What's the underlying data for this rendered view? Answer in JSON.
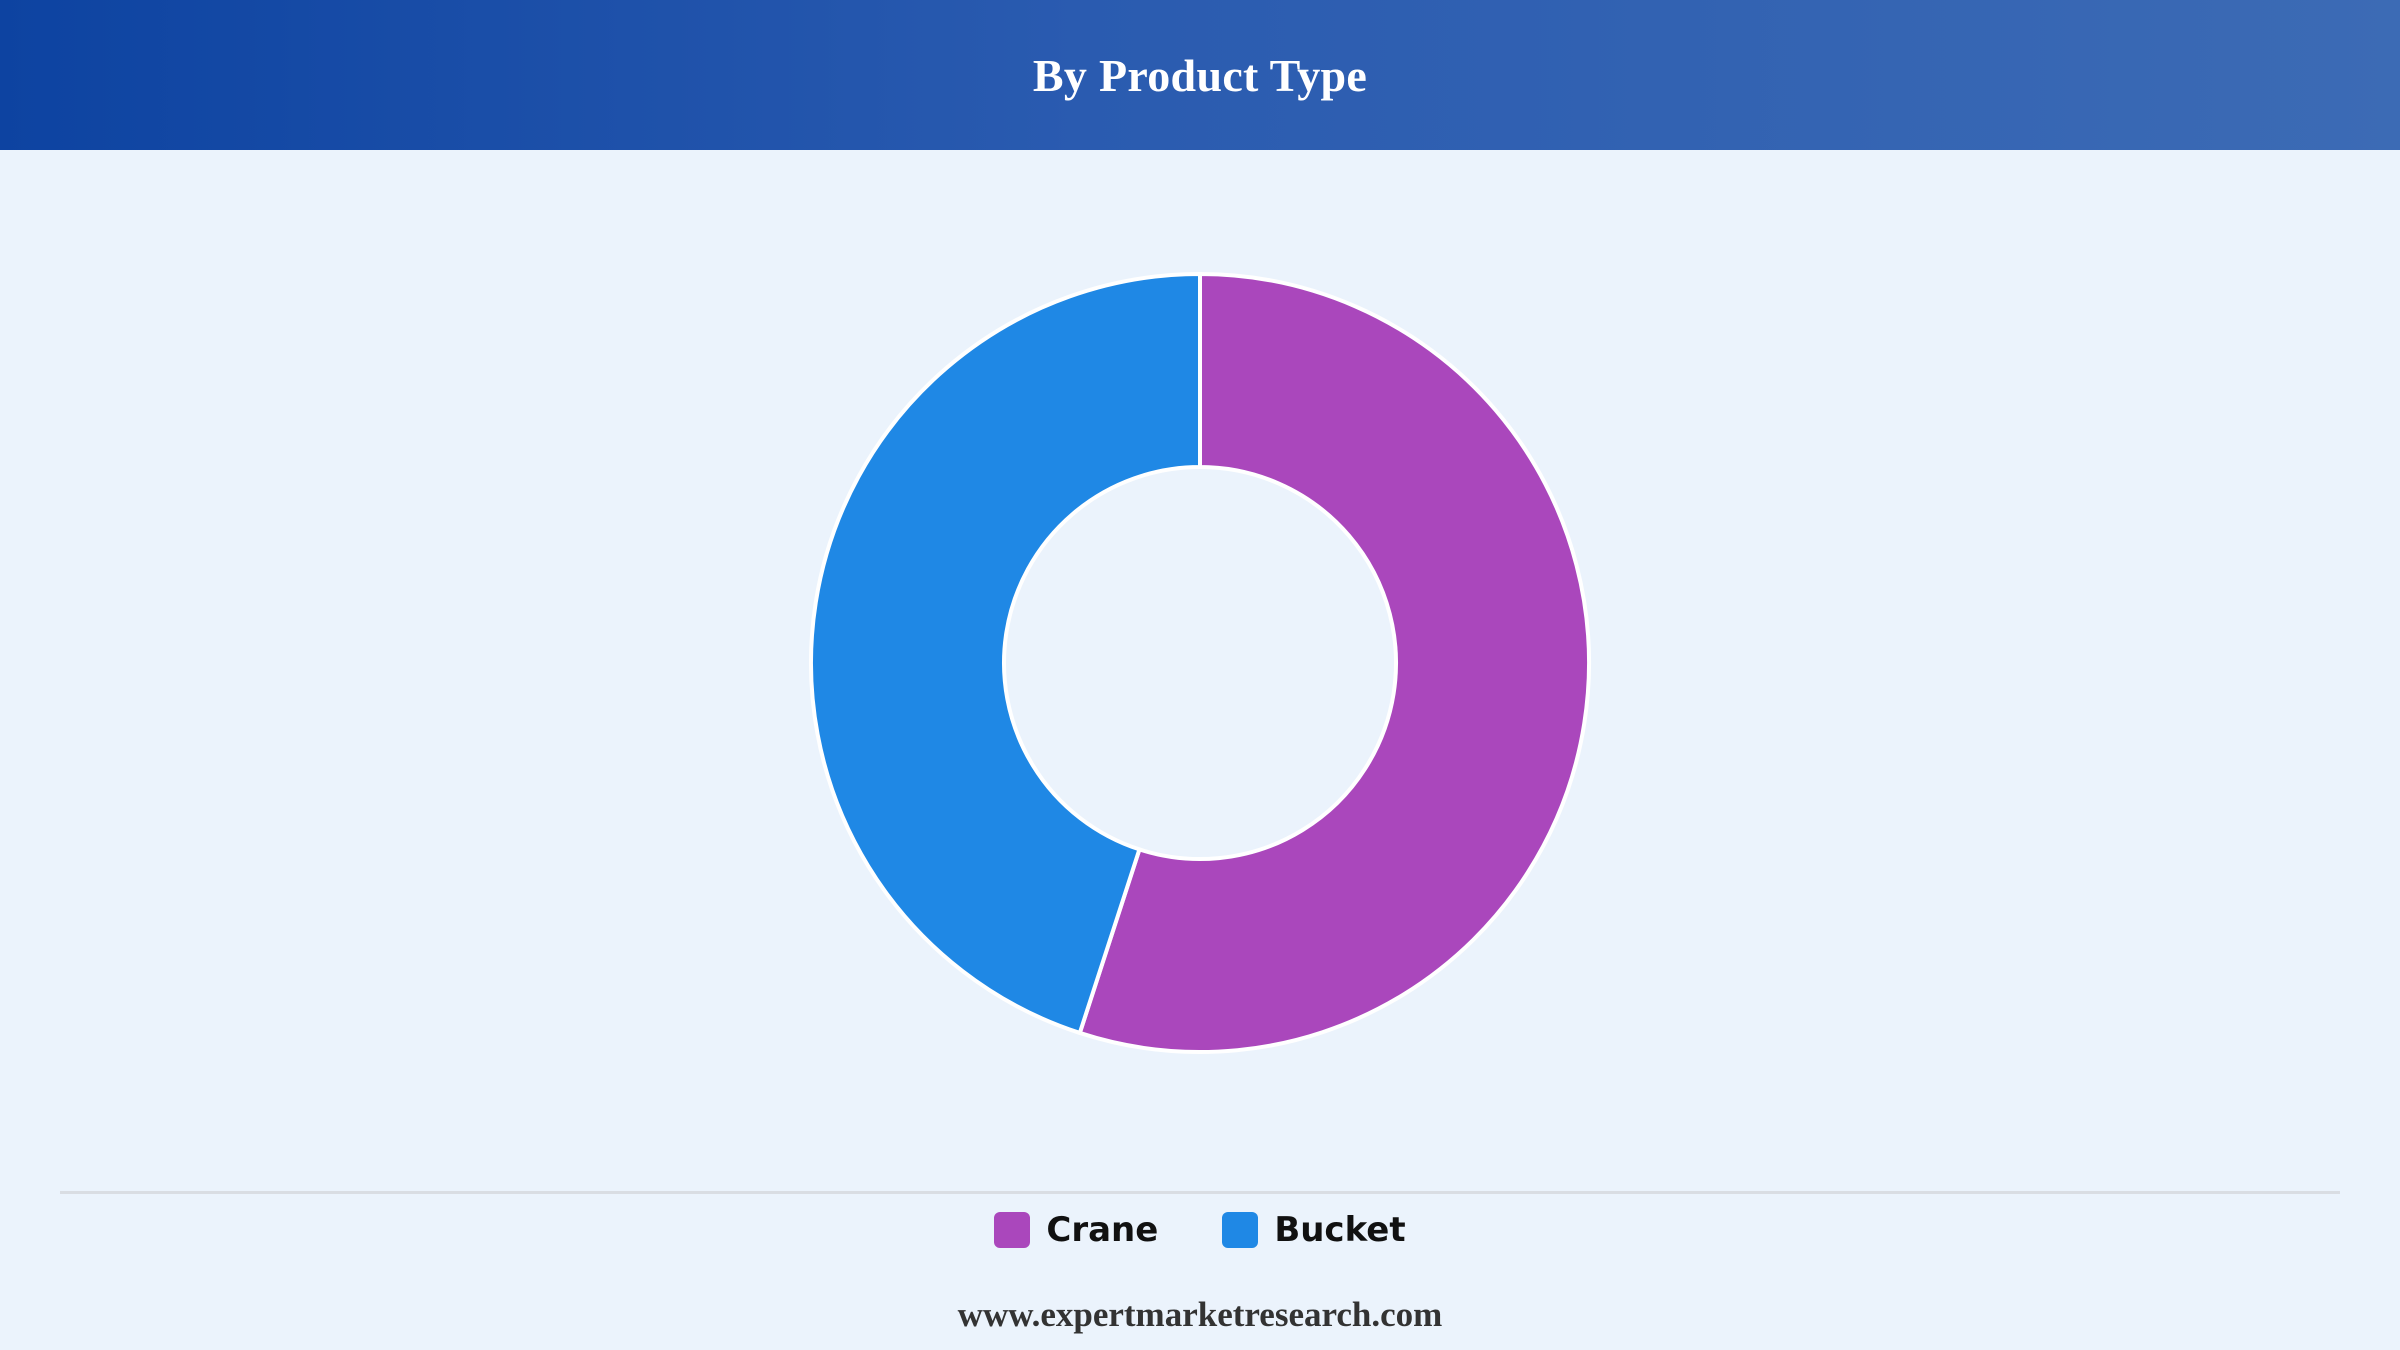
{
  "header": {
    "title": "By Product Type"
  },
  "chart_data": {
    "type": "pie",
    "donut": true,
    "categories": [
      "Crane",
      "Bucket"
    ],
    "values": [
      55,
      45
    ],
    "colors": [
      "#aa47bc",
      "#1f88e5"
    ],
    "legend_position": "bottom",
    "title": "By Product Type"
  },
  "legend": {
    "items": [
      {
        "label": "Crane",
        "color": "#aa47bc"
      },
      {
        "label": "Bucket",
        "color": "#1f88e5"
      }
    ]
  },
  "footer": {
    "url": "www.expertmarketresearch.com"
  }
}
